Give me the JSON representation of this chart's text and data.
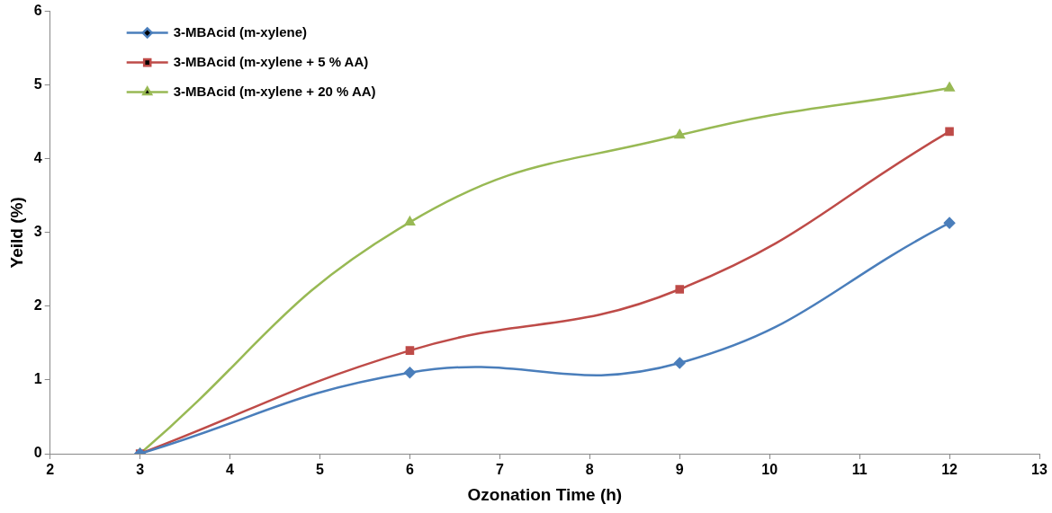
{
  "chart_data": {
    "type": "line",
    "xlabel": "Ozonation Time (h)",
    "ylabel": "Yeild (%)",
    "x": [
      3,
      6,
      9,
      12
    ],
    "series": [
      {
        "name": "3-MBAcid (m-xylene)",
        "color": "#4a7ebb",
        "marker": "diamond",
        "values": [
          0,
          1.1,
          1.23,
          3.13
        ]
      },
      {
        "name": "3-MBAcid (m-xylene + 5 % AA)",
        "color": "#be4b48",
        "marker": "square",
        "values": [
          0,
          1.4,
          2.23,
          4.37
        ]
      },
      {
        "name": "3-MBAcid (m-xylene + 20 % AA)",
        "color": "#98b954",
        "marker": "triangle",
        "values": [
          0,
          3.14,
          4.32,
          4.96
        ]
      }
    ],
    "xlim": [
      2,
      13
    ],
    "xticks": [
      2,
      3,
      4,
      5,
      6,
      7,
      8,
      9,
      10,
      11,
      12,
      13
    ],
    "ylim": [
      0,
      6
    ],
    "yticks": [
      0,
      1,
      2,
      3,
      4,
      5,
      6
    ],
    "grid": false,
    "legend": "top left",
    "line_style": "solid"
  }
}
